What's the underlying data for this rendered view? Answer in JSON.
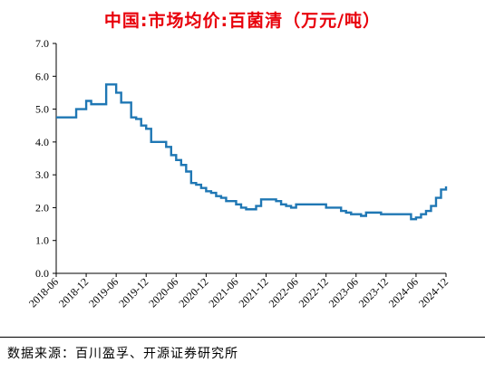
{
  "chart_data": {
    "type": "line",
    "title": "中国:市场均价:百菌清（万元/吨）",
    "ylim": [
      0,
      7
    ],
    "yticks": [
      "0.0",
      "1.0",
      "2.0",
      "3.0",
      "4.0",
      "5.0",
      "6.0",
      "7.0"
    ],
    "xticks": [
      "2018-06",
      "2018-12",
      "2019-06",
      "2019-12",
      "2020-06",
      "2020-12",
      "2021-06",
      "2021-12",
      "2022-06",
      "2022-12",
      "2023-06",
      "2023-12",
      "2024-06",
      "2024-12"
    ],
    "grid": false,
    "legend": "none",
    "line_color": "#1f77b4",
    "series": [
      {
        "step": "post",
        "points": [
          [
            "2018-06",
            4.75
          ],
          [
            "2018-08",
            4.75
          ],
          [
            "2018-10",
            5.0
          ],
          [
            "2018-12",
            5.25
          ],
          [
            "2019-01",
            5.15
          ],
          [
            "2019-04",
            5.75
          ],
          [
            "2019-06",
            5.5
          ],
          [
            "2019-07",
            5.2
          ],
          [
            "2019-08",
            5.2
          ],
          [
            "2019-09",
            4.75
          ],
          [
            "2019-10",
            4.7
          ],
          [
            "2019-11",
            4.5
          ],
          [
            "2019-12",
            4.4
          ],
          [
            "2020-01",
            4.0
          ],
          [
            "2020-03",
            4.0
          ],
          [
            "2020-04",
            3.85
          ],
          [
            "2020-05",
            3.6
          ],
          [
            "2020-06",
            3.45
          ],
          [
            "2020-07",
            3.3
          ],
          [
            "2020-08",
            3.1
          ],
          [
            "2020-09",
            2.75
          ],
          [
            "2020-10",
            2.7
          ],
          [
            "2020-11",
            2.6
          ],
          [
            "2020-12",
            2.5
          ],
          [
            "2021-01",
            2.45
          ],
          [
            "2021-02",
            2.35
          ],
          [
            "2021-03",
            2.3
          ],
          [
            "2021-04",
            2.2
          ],
          [
            "2021-05",
            2.2
          ],
          [
            "2021-06",
            2.1
          ],
          [
            "2021-07",
            2.0
          ],
          [
            "2021-08",
            1.95
          ],
          [
            "2021-09",
            1.95
          ],
          [
            "2021-10",
            2.05
          ],
          [
            "2021-11",
            2.25
          ],
          [
            "2021-12",
            2.25
          ],
          [
            "2022-02",
            2.2
          ],
          [
            "2022-03",
            2.1
          ],
          [
            "2022-04",
            2.05
          ],
          [
            "2022-05",
            2.0
          ],
          [
            "2022-06",
            2.1
          ],
          [
            "2022-08",
            2.1
          ],
          [
            "2022-10",
            2.1
          ],
          [
            "2022-12",
            2.0
          ],
          [
            "2023-01",
            2.0
          ],
          [
            "2023-03",
            1.9
          ],
          [
            "2023-04",
            1.85
          ],
          [
            "2023-05",
            1.8
          ],
          [
            "2023-06",
            1.8
          ],
          [
            "2023-07",
            1.75
          ],
          [
            "2023-08",
            1.85
          ],
          [
            "2023-09",
            1.85
          ],
          [
            "2023-10",
            1.85
          ],
          [
            "2023-11",
            1.8
          ],
          [
            "2023-12",
            1.8
          ],
          [
            "2024-02",
            1.8
          ],
          [
            "2024-04",
            1.8
          ],
          [
            "2024-05",
            1.65
          ],
          [
            "2024-06",
            1.7
          ],
          [
            "2024-07",
            1.8
          ],
          [
            "2024-08",
            1.9
          ],
          [
            "2024-09",
            2.05
          ],
          [
            "2024-10",
            2.3
          ],
          [
            "2024-11",
            2.55
          ],
          [
            "2024-12",
            2.65
          ]
        ]
      }
    ]
  },
  "footer": {
    "source": "数据来源：百川盈孚、开源证券研究所"
  }
}
